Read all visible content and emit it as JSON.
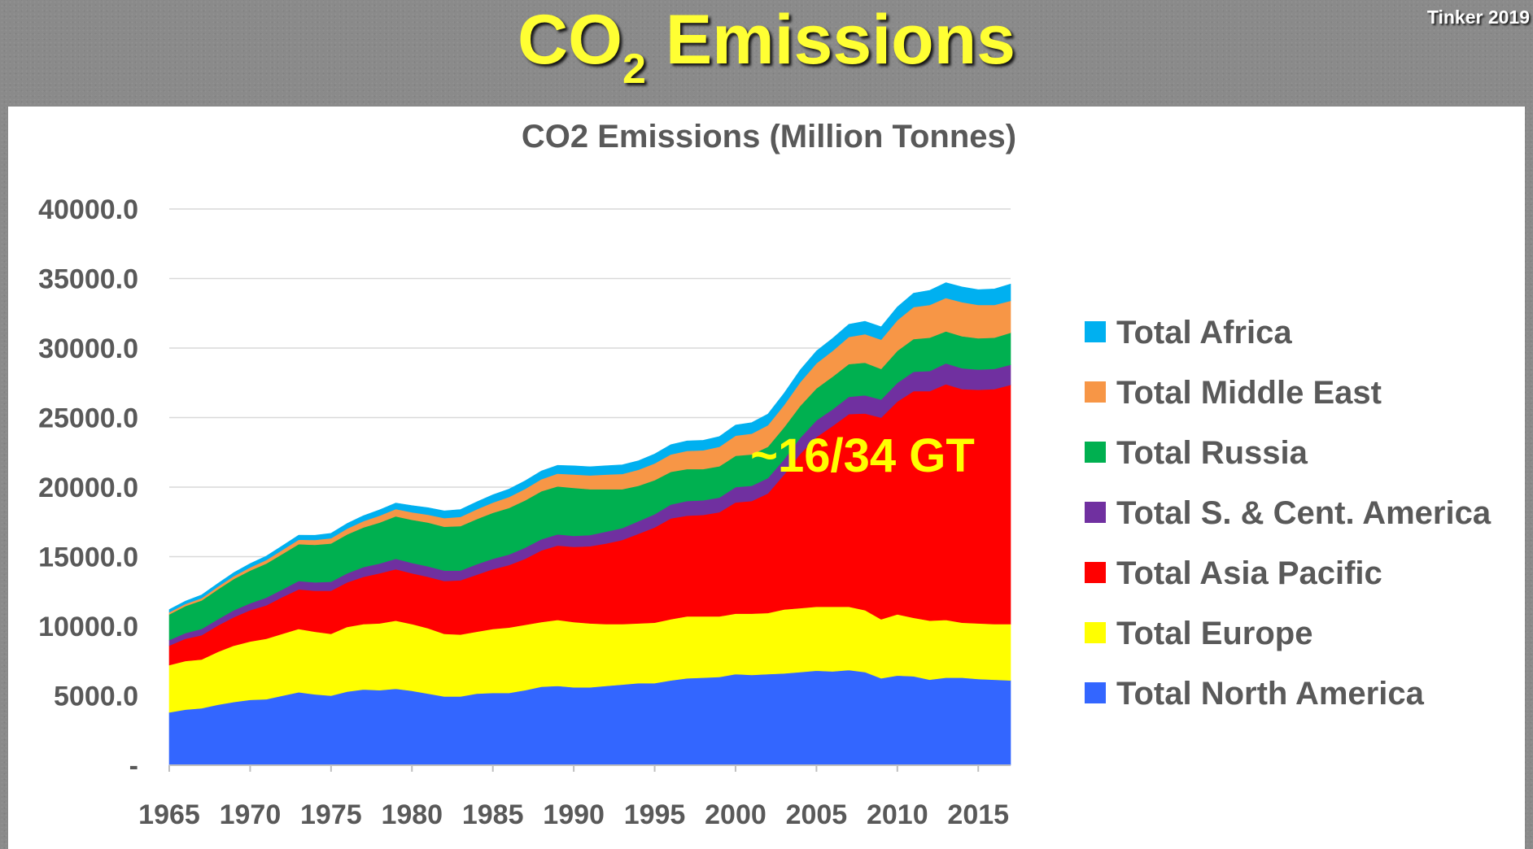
{
  "slide": {
    "title_main": "CO",
    "title_sub": "2",
    "title_rest": " Emissions",
    "credit": "Tinker 2019"
  },
  "chart_data": {
    "type": "area",
    "stacked": true,
    "title": "CO2 Emissions (Million Tonnes)",
    "xlabel": "",
    "ylabel": "",
    "ylim": [
      0,
      40000
    ],
    "yticks": [
      0,
      5000,
      10000,
      15000,
      20000,
      25000,
      30000,
      35000,
      40000
    ],
    "ytick_labels": [
      "-",
      "5000.0",
      "10000.0",
      "15000.0",
      "20000.0",
      "25000.0",
      "30000.0",
      "35000.0",
      "40000.0"
    ],
    "xticks": [
      1965,
      1970,
      1975,
      1980,
      1985,
      1990,
      1995,
      2000,
      2005,
      2010,
      2015
    ],
    "grid": true,
    "legend_position": "right",
    "annotation": "~16/34 GT",
    "x": [
      1965,
      1966,
      1967,
      1968,
      1969,
      1970,
      1971,
      1972,
      1973,
      1974,
      1975,
      1976,
      1977,
      1978,
      1979,
      1980,
      1981,
      1982,
      1983,
      1984,
      1985,
      1986,
      1987,
      1988,
      1989,
      1990,
      1991,
      1992,
      1993,
      1994,
      1995,
      1996,
      1997,
      1998,
      1999,
      2000,
      2001,
      2002,
      2003,
      2004,
      2005,
      2006,
      2007,
      2008,
      2009,
      2010,
      2011,
      2012,
      2013,
      2014,
      2015,
      2016,
      2017
    ],
    "series": [
      {
        "name": "Total North America",
        "color": "#3366ff",
        "values": [
          3800,
          4000,
          4100,
          4350,
          4550,
          4700,
          4750,
          5000,
          5250,
          5100,
          5000,
          5300,
          5450,
          5400,
          5500,
          5350,
          5150,
          4950,
          4950,
          5150,
          5200,
          5200,
          5400,
          5650,
          5700,
          5600,
          5600,
          5700,
          5800,
          5900,
          5900,
          6100,
          6250,
          6300,
          6350,
          6550,
          6500,
          6550,
          6600,
          6700,
          6800,
          6750,
          6850,
          6700,
          6250,
          6450,
          6400,
          6150,
          6300,
          6300,
          6200,
          6150,
          6100
        ]
      },
      {
        "name": "Total Europe",
        "color": "#ffff00",
        "values": [
          3400,
          3500,
          3500,
          3800,
          4050,
          4200,
          4350,
          4450,
          4550,
          4500,
          4450,
          4650,
          4700,
          4800,
          4900,
          4800,
          4700,
          4500,
          4450,
          4450,
          4600,
          4700,
          4700,
          4650,
          4750,
          4700,
          4600,
          4450,
          4350,
          4300,
          4350,
          4400,
          4450,
          4400,
          4350,
          4350,
          4400,
          4400,
          4600,
          4600,
          4600,
          4650,
          4550,
          4450,
          4250,
          4400,
          4200,
          4250,
          4150,
          3950,
          4000,
          4000,
          4050
        ]
      },
      {
        "name": "Total Asia Pacific",
        "color": "#ff0000",
        "values": [
          1400,
          1600,
          1750,
          1900,
          2050,
          2250,
          2400,
          2650,
          2850,
          2950,
          3100,
          3200,
          3400,
          3600,
          3700,
          3650,
          3700,
          3800,
          3900,
          4100,
          4300,
          4500,
          4750,
          5150,
          5350,
          5400,
          5550,
          5800,
          6050,
          6450,
          6850,
          7250,
          7250,
          7300,
          7500,
          8000,
          8100,
          8600,
          9700,
          11100,
          12200,
          13000,
          13850,
          14150,
          14500,
          15300,
          16300,
          16500,
          16950,
          16800,
          16800,
          16900,
          17200
        ]
      },
      {
        "name": "Total S. & Cent. America",
        "color": "#7030a0",
        "values": [
          400,
          400,
          450,
          450,
          500,
          500,
          550,
          550,
          600,
          600,
          650,
          650,
          700,
          700,
          750,
          750,
          750,
          750,
          700,
          750,
          750,
          750,
          800,
          800,
          800,
          800,
          800,
          850,
          850,
          900,
          950,
          1000,
          1050,
          1050,
          1050,
          1100,
          1100,
          1100,
          1100,
          1150,
          1200,
          1200,
          1250,
          1300,
          1300,
          1350,
          1400,
          1450,
          1500,
          1500,
          1450,
          1450,
          1450
        ]
      },
      {
        "name": "Total Russia",
        "color": "#00b050",
        "values": [
          1850,
          1950,
          2050,
          2150,
          2250,
          2350,
          2450,
          2550,
          2650,
          2700,
          2750,
          2800,
          2850,
          2950,
          3050,
          3100,
          3150,
          3150,
          3200,
          3250,
          3300,
          3350,
          3400,
          3450,
          3450,
          3450,
          3300,
          3050,
          2800,
          2550,
          2450,
          2350,
          2300,
          2250,
          2250,
          2250,
          2250,
          2250,
          2300,
          2300,
          2300,
          2350,
          2350,
          2350,
          2200,
          2300,
          2350,
          2400,
          2300,
          2300,
          2250,
          2250,
          2300
        ]
      },
      {
        "name": "Total Middle East",
        "color": "#f79646",
        "values": [
          150,
          150,
          170,
          190,
          210,
          230,
          260,
          290,
          320,
          350,
          380,
          420,
          450,
          500,
          520,
          540,
          570,
          620,
          660,
          700,
          740,
          790,
          830,
          870,
          920,
          960,
          990,
          1050,
          1100,
          1150,
          1200,
          1250,
          1300,
          1350,
          1400,
          1450,
          1500,
          1550,
          1600,
          1700,
          1800,
          1850,
          1950,
          2050,
          2100,
          2200,
          2300,
          2350,
          2400,
          2450,
          2400,
          2350,
          2300
        ]
      },
      {
        "name": "Total Africa",
        "color": "#00b0f0",
        "values": [
          200,
          200,
          230,
          230,
          250,
          270,
          280,
          300,
          330,
          340,
          350,
          370,
          400,
          420,
          440,
          480,
          500,
          520,
          530,
          540,
          560,
          570,
          580,
          590,
          600,
          620,
          630,
          640,
          650,
          650,
          680,
          700,
          720,
          720,
          740,
          770,
          790,
          800,
          850,
          880,
          890,
          900,
          910,
          930,
          930,
          960,
          1000,
          1050,
          1100,
          1100,
          1100,
          1150,
          1200
        ]
      }
    ]
  }
}
